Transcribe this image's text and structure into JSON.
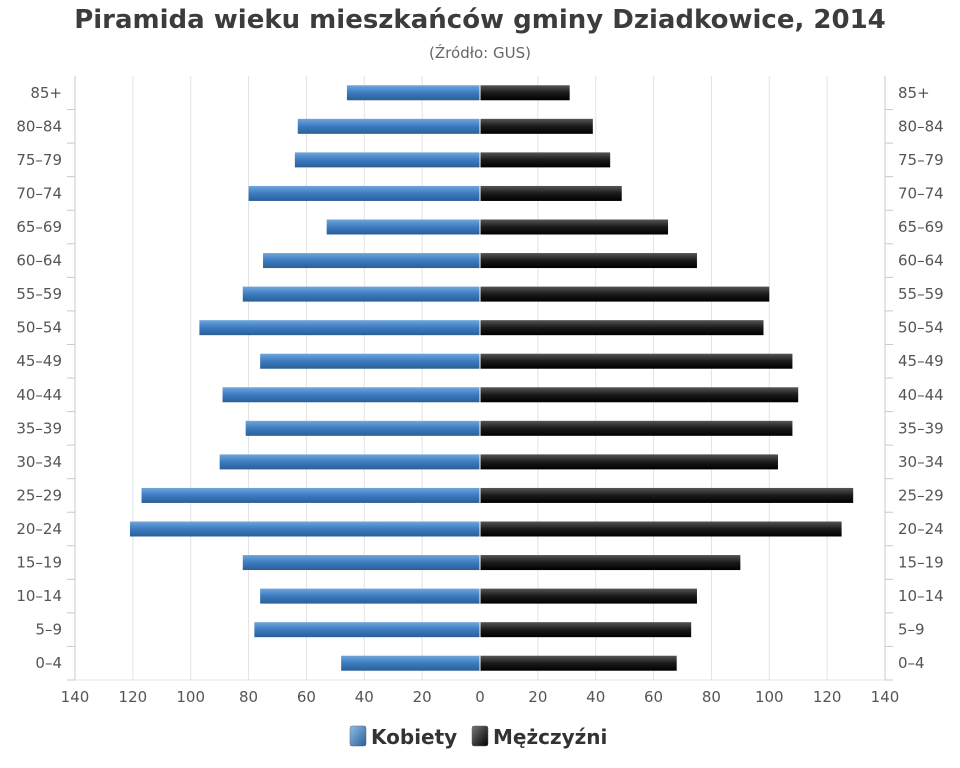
{
  "title": "Piramida wieku mieszkańców gminy Dziadkowice, 2014",
  "subtitle": "(Źródło: GUS)",
  "chart_data": {
    "type": "bar",
    "orientation": "horizontal",
    "layout": "population-pyramid",
    "title": "Piramida wieku mieszkańców gminy Dziadkowice, 2014",
    "subtitle": "(Źródło: GUS)",
    "categories": [
      "85+",
      "80–84",
      "75–79",
      "70–74",
      "65–69",
      "60–64",
      "55–59",
      "50–54",
      "45–49",
      "40–44",
      "35–39",
      "30–34",
      "25–29",
      "20–24",
      "15–19",
      "10–14",
      "5–9",
      "0–4"
    ],
    "series": [
      {
        "name": "Kobiety",
        "color": "#3b7bbf",
        "side": "left",
        "values": [
          46,
          63,
          64,
          80,
          53,
          75,
          82,
          97,
          76,
          89,
          81,
          90,
          117,
          121,
          82,
          76,
          78,
          48
        ]
      },
      {
        "name": "Mężczyźni",
        "color": "#1a1a1a",
        "side": "right",
        "values": [
          31,
          39,
          45,
          49,
          65,
          75,
          100,
          98,
          108,
          110,
          108,
          103,
          129,
          125,
          90,
          75,
          73,
          68
        ]
      }
    ],
    "x_ticks": [
      140,
      120,
      100,
      80,
      60,
      40,
      20,
      0,
      20,
      40,
      60,
      80,
      100,
      120,
      140
    ],
    "xlim": [
      -140,
      140
    ],
    "grid": true,
    "legend": "bottom-center"
  }
}
